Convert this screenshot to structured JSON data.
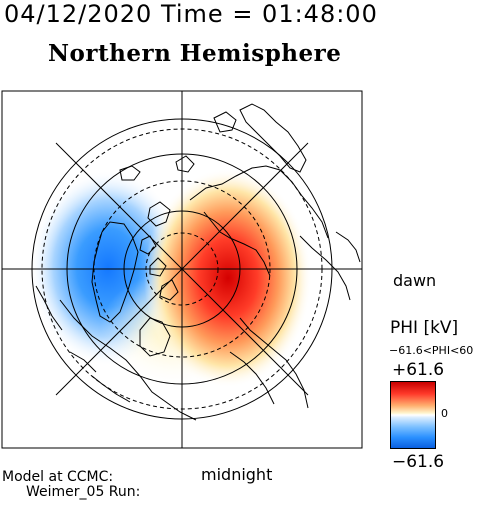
{
  "header": {
    "date_time": "04/12/2020 Time = 01:48:00"
  },
  "map": {
    "title": "Northern Hemisphere",
    "dawn_label": "dawn",
    "midnight_label": "midnight"
  },
  "model": {
    "line1": "Model at CCMC:",
    "line2": "Weimer_05 Run:"
  },
  "colorbar": {
    "variable_label": "PHI [kV]",
    "range_label": "−61.6<PHI<60",
    "max_label": "+61.6",
    "zero_label": "0",
    "min_label": "−61.6",
    "colors": {
      "max": "#c80000",
      "zero": "#ffffff",
      "min": "#0a60e0"
    }
  }
}
